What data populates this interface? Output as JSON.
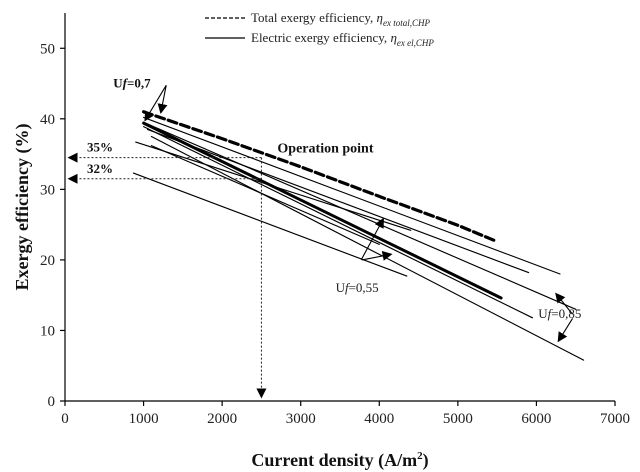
{
  "chart_data": {
    "type": "line",
    "xlabel": "Current density (A/m",
    "xlabel_superscript": "2",
    "xlabel_close": ")",
    "ylabel": "Exergy efficiency (%)",
    "xlim": [
      0,
      7000
    ],
    "ylim": [
      0,
      55
    ],
    "xticks": [
      0,
      1000,
      2000,
      3000,
      4000,
      5000,
      6000,
      7000
    ],
    "yticks": [
      0,
      10,
      20,
      30,
      40,
      50
    ],
    "xtick_labels": [
      "0",
      "1000",
      "2000",
      "3000",
      "4000",
      "5000",
      "6000",
      "7000"
    ],
    "ytick_labels": [
      "0",
      "10",
      "20",
      "30",
      "40",
      "50"
    ],
    "grid": false,
    "legend": {
      "placement": "top-center",
      "entries": [
        {
          "style": "dashed",
          "text": "Total exergy efficiency, ",
          "symbol": "η",
          "subscript": "ex total,CHP"
        },
        {
          "style": "solid",
          "text": "Electric exergy efficiency, ",
          "symbol": "η",
          "subscript": "ex el,CHP"
        }
      ]
    },
    "series": [
      {
        "style": "dashed-bold",
        "group": "total",
        "x": [
          1000,
          2000,
          3000,
          4000,
          5000,
          5500
        ],
        "y": [
          41.0,
          37.2,
          33.2,
          29.0,
          24.9,
          22.6
        ]
      },
      {
        "style": "solid",
        "group": "total",
        "x": [
          1000,
          6300
        ],
        "y": [
          40.2,
          18.0
        ]
      },
      {
        "style": "solid",
        "group": "total",
        "x": [
          1000,
          6500
        ],
        "y": [
          39.5,
          13.0
        ]
      },
      {
        "style": "solid",
        "group": "total",
        "x": [
          1050,
          5900
        ],
        "y": [
          38.5,
          18.2
        ]
      },
      {
        "style": "solid",
        "group": "total",
        "x": [
          900,
          4400
        ],
        "y": [
          36.7,
          24.2
        ]
      },
      {
        "style": "bold",
        "group": "electric",
        "x": [
          1000,
          5550
        ],
        "y": [
          39.4,
          14.6
        ]
      },
      {
        "style": "solid",
        "group": "electric",
        "x": [
          1000,
          5950
        ],
        "y": [
          38.9,
          11.8
        ]
      },
      {
        "style": "solid",
        "group": "electric",
        "x": [
          1100,
          6600
        ],
        "y": [
          37.5,
          5.8
        ]
      },
      {
        "style": "solid",
        "group": "electric",
        "x": [
          1100,
          4000
        ],
        "y": [
          36.2,
          22.2
        ]
      },
      {
        "style": "solid",
        "group": "electric",
        "x": [
          870,
          4350
        ],
        "y": [
          32.3,
          17.7
        ]
      }
    ],
    "annotations": [
      {
        "text": "Uf=0,7",
        "label_parts": [
          "U",
          "f",
          "=0,7"
        ],
        "x": 1250,
        "y": 40.5,
        "bold": true
      },
      {
        "text": "Uf=0,55",
        "label_parts": [
          "U",
          "f",
          "=0,55"
        ],
        "x": 3800,
        "y": 19.0,
        "bold": false
      },
      {
        "text": "Uf=0,85",
        "label_parts": [
          "U",
          "f",
          "=0,85"
        ],
        "x": 6100,
        "y": 11.8,
        "bold": false
      },
      {
        "text": "Operation point",
        "x": 2500,
        "y": 34.5,
        "bold": true
      },
      {
        "text": "35%",
        "x": 0,
        "y": 34.5,
        "bold": true
      },
      {
        "text": "32%",
        "x": 0,
        "y": 31.5,
        "bold": true
      }
    ],
    "operation_point": {
      "x": 2500,
      "y_total": 34.5,
      "y_electric": 31.5
    }
  }
}
